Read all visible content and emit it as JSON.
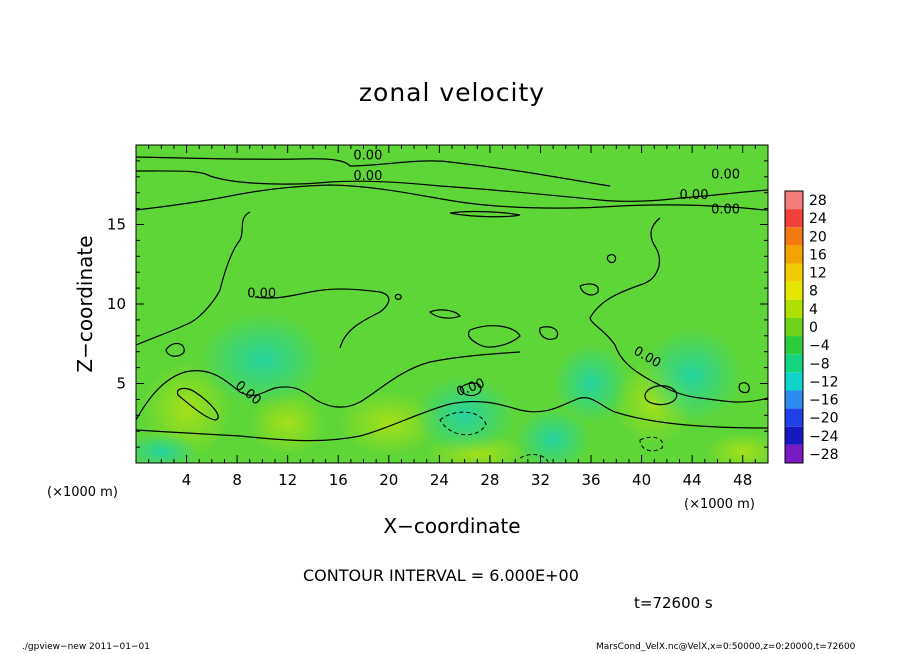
{
  "chart_data": {
    "type": "heatmap",
    "title": "zonal velocity",
    "xlabel": "X−coordinate",
    "ylabel": "Z−coordinate",
    "x_unit": "(×1000 m)",
    "y_unit": "(×1000 m)",
    "x_ticks": [
      4,
      8,
      12,
      16,
      20,
      24,
      28,
      32,
      36,
      40,
      44,
      48
    ],
    "y_ticks": [
      5,
      10,
      15
    ],
    "xlim": [
      0,
      50
    ],
    "ylim": [
      0,
      20
    ],
    "contour_interval": "CONTOUR INTERVAL = 6.000E+00",
    "contour_label": "0.00",
    "colorbar": {
      "levels": [
        28,
        24,
        20,
        16,
        12,
        8,
        4,
        0,
        "−4",
        "−8",
        "−12",
        "−16",
        "−20",
        "−24",
        "−28"
      ],
      "colors": [
        "#f47c7c",
        "#f2403a",
        "#f27a10",
        "#f4a402",
        "#f2cc00",
        "#e6e600",
        "#b0e000",
        "#6ed21c",
        "#2ccc3c",
        "#14d480",
        "#10d4c8",
        "#2c8cf0",
        "#2040e8",
        "#1818c0",
        "#7a1ac4"
      ]
    },
    "field_summary": "values mostly near 0 (green), weak positive patches near x=4 and x=41 at low z, weak negative near x=26-33 at low z"
  },
  "annotations": {
    "time": "t=72600 s",
    "footer_left": "./gpview−new   2011−01−01",
    "footer_right": "MarsCond_VelX.nc@VelX,x=0:50000,z=0:20000,t=72600"
  }
}
